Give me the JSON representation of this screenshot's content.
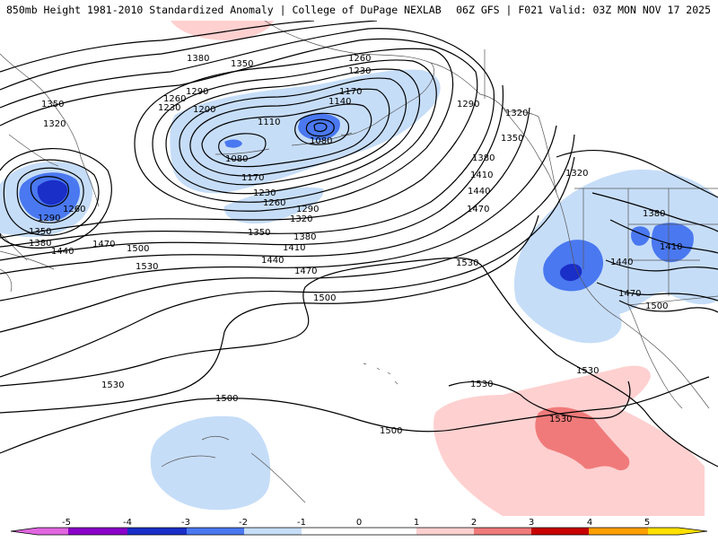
{
  "header": {
    "title": "850mb Height 1981-2010 Standardized Anomaly | College of DuPage NEXLAB",
    "run": "06Z GFS | F021 Valid: 03Z MON NOV 17 2025"
  },
  "colors": {
    "neg5": "#e066e0",
    "neg4": "#8a00c8",
    "neg3": "#1a2ec8",
    "neg2": "#4a78f0",
    "neg1": "#c6ddf8",
    "pos1": "#ffd0d0",
    "pos2": "#f07a7a",
    "pos3": "#c80000",
    "pos4": "#ffa000",
    "pos5": "#ffe000",
    "contour": "#000000",
    "coast": "#555555"
  },
  "contour_labels": [
    {
      "id": "c1380a",
      "text": "1380"
    },
    {
      "id": "c1350a",
      "text": "1350"
    },
    {
      "id": "c1260a",
      "text": "1260"
    },
    {
      "id": "c1230a",
      "text": "1230"
    },
    {
      "id": "c1290a",
      "text": "1290"
    },
    {
      "id": "c1170a",
      "text": "1170"
    },
    {
      "id": "c1140a",
      "text": "1140"
    },
    {
      "id": "c1260b",
      "text": "1260"
    },
    {
      "id": "c1230b",
      "text": "1230"
    },
    {
      "id": "c1200a",
      "text": "1200"
    },
    {
      "id": "c1110a",
      "text": "1110"
    },
    {
      "id": "c1080a",
      "text": "1080"
    },
    {
      "id": "c1080b",
      "text": "1080"
    },
    {
      "id": "c1170b",
      "text": "1170"
    },
    {
      "id": "c1230c",
      "text": "1230"
    },
    {
      "id": "c1260c",
      "text": "1260"
    },
    {
      "id": "c1290b",
      "text": "1290"
    },
    {
      "id": "c1320a",
      "text": "1320"
    },
    {
      "id": "c1350b",
      "text": "1350"
    },
    {
      "id": "c1380b",
      "text": "1380"
    },
    {
      "id": "c1410a",
      "text": "1410"
    },
    {
      "id": "c1440a",
      "text": "1440"
    },
    {
      "id": "c1470a",
      "text": "1470"
    },
    {
      "id": "c1500a",
      "text": "1500"
    },
    {
      "id": "c1530a",
      "text": "1530"
    },
    {
      "id": "c1350c",
      "text": "1350"
    },
    {
      "id": "c1320b",
      "text": "1320"
    },
    {
      "id": "c1260d",
      "text": "1260"
    },
    {
      "id": "c1290c",
      "text": "1290"
    },
    {
      "id": "c1350d",
      "text": "1350"
    },
    {
      "id": "c1380c",
      "text": "1380"
    },
    {
      "id": "c1440b",
      "text": "1440"
    },
    {
      "id": "c1470b",
      "text": "1470"
    },
    {
      "id": "c1500b",
      "text": "1500"
    },
    {
      "id": "c1530b",
      "text": "1530"
    },
    {
      "id": "c1290d",
      "text": "1290"
    },
    {
      "id": "c1320c",
      "text": "1320"
    },
    {
      "id": "c1350e",
      "text": "1350"
    },
    {
      "id": "c1380d",
      "text": "1380"
    },
    {
      "id": "c1410b",
      "text": "1410"
    },
    {
      "id": "c1440c",
      "text": "1440"
    },
    {
      "id": "c1470c",
      "text": "1470"
    },
    {
      "id": "c1530c",
      "text": "1530"
    },
    {
      "id": "c1320d",
      "text": "1320"
    },
    {
      "id": "c1380e",
      "text": "1380"
    },
    {
      "id": "c1410c",
      "text": "1410"
    },
    {
      "id": "c1440d",
      "text": "1440"
    },
    {
      "id": "c1470d",
      "text": "1470"
    },
    {
      "id": "c1500c",
      "text": "1500"
    },
    {
      "id": "c1530d",
      "text": "1530"
    },
    {
      "id": "c1530e",
      "text": "1530"
    },
    {
      "id": "c1530f",
      "text": "1530"
    },
    {
      "id": "c1500d",
      "text": "1500"
    },
    {
      "id": "c1500e",
      "text": "1500"
    }
  ],
  "colorbar": {
    "ticks": [
      "-5",
      "-4",
      "-3",
      "-2",
      "-1",
      "0",
      "1",
      "2",
      "3",
      "4",
      "5"
    ]
  }
}
